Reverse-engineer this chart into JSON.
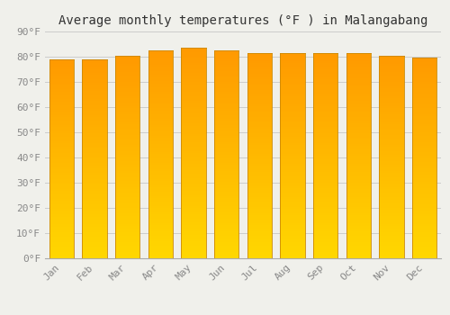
{
  "title": "Average monthly temperatures (°F ) in Malangabang",
  "months": [
    "Jan",
    "Feb",
    "Mar",
    "Apr",
    "May",
    "Jun",
    "Jul",
    "Aug",
    "Sep",
    "Oct",
    "Nov",
    "Dec"
  ],
  "values": [
    78.8,
    79.0,
    80.4,
    82.6,
    83.5,
    82.4,
    81.5,
    81.5,
    81.5,
    81.3,
    80.4,
    79.5
  ],
  "ylim": [
    0,
    90
  ],
  "yticks": [
    0,
    10,
    20,
    30,
    40,
    50,
    60,
    70,
    80,
    90
  ],
  "ytick_labels": [
    "0°F",
    "10°F",
    "20°F",
    "30°F",
    "40°F",
    "50°F",
    "60°F",
    "70°F",
    "80°F",
    "90°F"
  ],
  "bar_color_top": "#FFA500",
  "bar_color_bottom": "#FFD700",
  "background_color": "#F0F0EB",
  "grid_color": "#CCCCCC",
  "title_fontsize": 10,
  "tick_fontsize": 8,
  "font_family": "monospace"
}
